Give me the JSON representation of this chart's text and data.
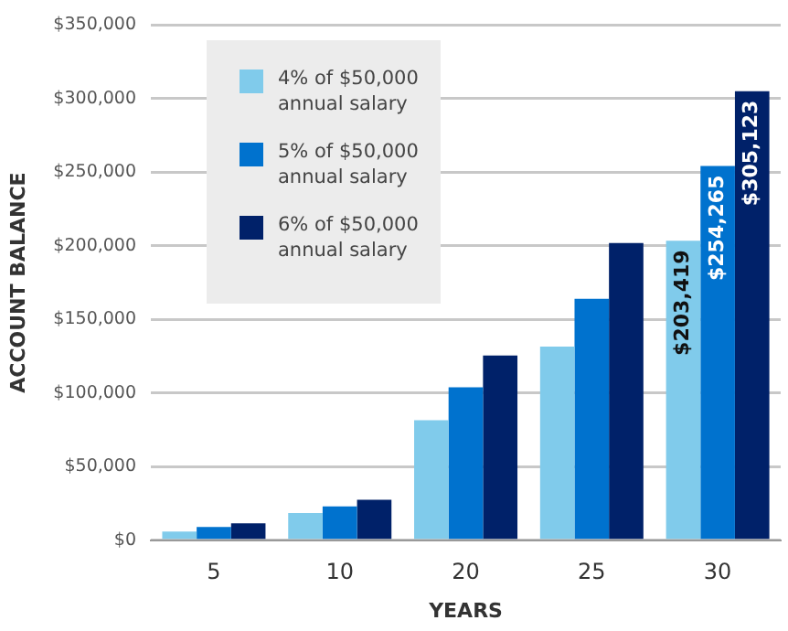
{
  "chart_data": {
    "type": "bar",
    "xlabel": "YEARS",
    "ylabel": "ACCOUNT BALANCE",
    "categories": [
      "5",
      "10",
      "20",
      "25",
      "30"
    ],
    "series": [
      {
        "name": "4% of $50,000 annual salary",
        "color": "#80cbeb",
        "values": [
          6000,
          18500,
          81500,
          131500,
          203419
        ],
        "value_labels": [
          null,
          null,
          null,
          null,
          "$203,419"
        ]
      },
      {
        "name": "5% of $50,000 annual salary",
        "color": "#0072ce",
        "values": [
          9000,
          23000,
          104000,
          164000,
          254265
        ],
        "value_labels": [
          null,
          null,
          null,
          null,
          "$254,265"
        ]
      },
      {
        "name": "6% of $50,000 annual salary",
        "color": "#002169",
        "values": [
          11500,
          27500,
          125500,
          202000,
          305123
        ],
        "value_labels": [
          null,
          null,
          null,
          null,
          "$305,123"
        ]
      }
    ],
    "ylim": [
      0,
      350000
    ],
    "yticks": [
      {
        "value": 0,
        "label": "$0"
      },
      {
        "value": 50000,
        "label": "$50,000"
      },
      {
        "value": 100000,
        "label": "$100,000"
      },
      {
        "value": 150000,
        "label": "$150,000"
      },
      {
        "value": 200000,
        "label": "$200,000"
      },
      {
        "value": 250000,
        "label": "$250,000"
      },
      {
        "value": 300000,
        "label": "$300,000"
      },
      {
        "value": 350000,
        "label": "$350,000"
      }
    ],
    "grid": "y",
    "legend": "top left"
  }
}
